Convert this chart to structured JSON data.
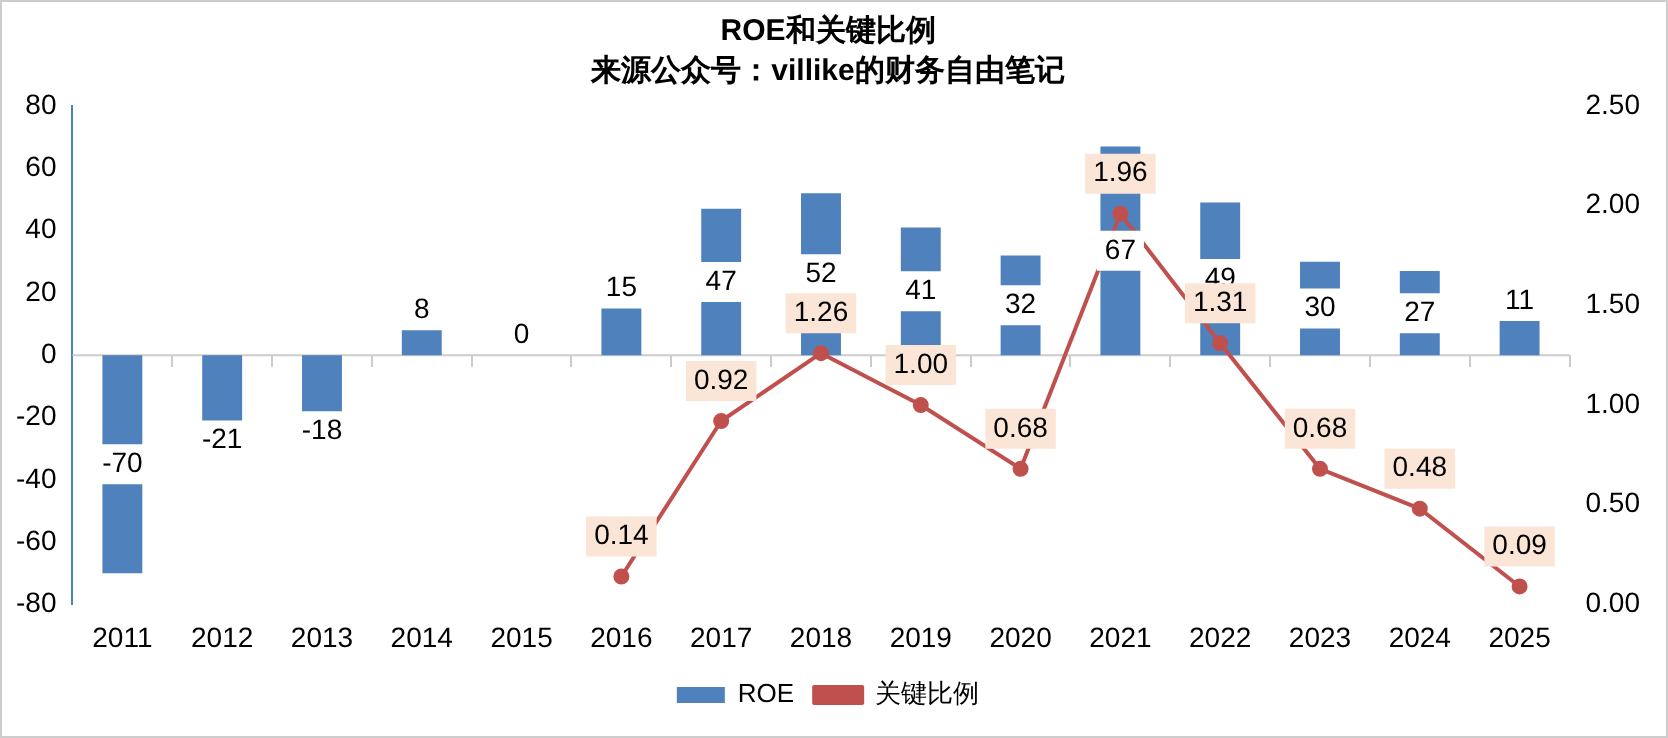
{
  "chart_data": {
    "type": "bar",
    "title": "ROE和关键比例",
    "subtitle": "来源公众号：villike的财务自由笔记",
    "categories": [
      "2011",
      "2012",
      "2013",
      "2014",
      "2015",
      "2016",
      "2017",
      "2018",
      "2019",
      "2020",
      "2021",
      "2022",
      "2023",
      "2024",
      "2025"
    ],
    "series": [
      {
        "name": "ROE",
        "color": "#4f81bd",
        "values": [
          -70,
          -21,
          -18,
          8,
          0,
          15,
          47,
          52,
          41,
          32,
          67,
          49,
          30,
          27,
          11
        ],
        "value_labels": [
          "-70",
          "-21",
          "-18",
          "8",
          "0",
          "15",
          "47",
          "52",
          "41",
          "32",
          "67",
          "49",
          "30",
          "27",
          "11"
        ]
      },
      {
        "name": "关键比例",
        "type": "line",
        "axis": "y2",
        "color": "#c0504d",
        "marker": "circle",
        "values": [
          null,
          null,
          null,
          null,
          null,
          0.14,
          0.92,
          1.26,
          1.0,
          0.68,
          1.96,
          1.31,
          0.68,
          0.48,
          0.09
        ],
        "value_labels": [
          null,
          null,
          null,
          null,
          null,
          "0.14",
          "0.92",
          "1.26",
          "1.00",
          "0.68",
          "1.96",
          "1.31",
          "0.68",
          "0.48",
          "0.09"
        ]
      }
    ],
    "ylim": [
      -80,
      80
    ],
    "yticks": [
      -80,
      -60,
      -40,
      -20,
      0,
      20,
      40,
      60,
      80
    ],
    "y2lim": [
      0,
      2.5
    ],
    "y2ticks": [
      {
        "value": 0,
        "label": "0.00"
      },
      {
        "value": 0.5,
        "label": "0.50"
      },
      {
        "value": 1,
        "label": "1.00"
      },
      {
        "value": 1.5,
        "label": "1.50"
      },
      {
        "value": 2,
        "label": "2.00"
      },
      {
        "value": 2.5,
        "label": "2.50"
      }
    ],
    "ref_lines": [
      {
        "axis": "y",
        "value": 0,
        "color": "#cccccc"
      }
    ],
    "grid": false,
    "legend": "bottom"
  }
}
